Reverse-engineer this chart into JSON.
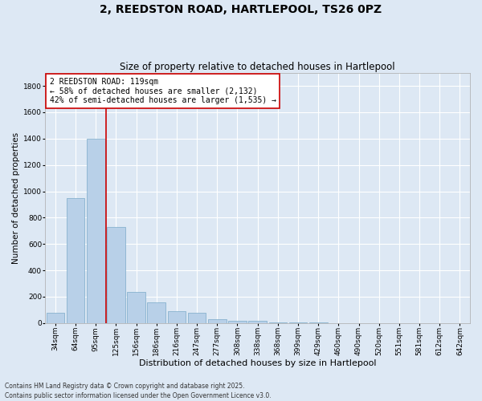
{
  "title": "2, REEDSTON ROAD, HARTLEPOOL, TS26 0PZ",
  "subtitle": "Size of property relative to detached houses in Hartlepool",
  "xlabel": "Distribution of detached houses by size in Hartlepool",
  "ylabel": "Number of detached properties",
  "categories": [
    "34sqm",
    "64sqm",
    "95sqm",
    "125sqm",
    "156sqm",
    "186sqm",
    "216sqm",
    "247sqm",
    "277sqm",
    "308sqm",
    "338sqm",
    "368sqm",
    "399sqm",
    "429sqm",
    "460sqm",
    "490sqm",
    "520sqm",
    "551sqm",
    "581sqm",
    "612sqm",
    "642sqm"
  ],
  "values": [
    75,
    950,
    1400,
    730,
    235,
    155,
    90,
    80,
    30,
    20,
    15,
    5,
    3,
    2,
    1,
    1,
    0,
    0,
    0,
    0,
    0
  ],
  "bar_color": "#b8d0e8",
  "bar_edge_color": "#7aaac8",
  "vline_color": "#cc0000",
  "annotation_text": "2 REEDSTON ROAD: 119sqm\n← 58% of detached houses are smaller (2,132)\n42% of semi-detached houses are larger (1,535) →",
  "annotation_box_facecolor": "#ffffff",
  "annotation_box_edge": "#cc0000",
  "ylim": [
    0,
    1900
  ],
  "yticks": [
    0,
    200,
    400,
    600,
    800,
    1000,
    1200,
    1400,
    1600,
    1800
  ],
  "bg_color": "#dde8f4",
  "grid_color": "#ffffff",
  "footer": "Contains HM Land Registry data © Crown copyright and database right 2025.\nContains public sector information licensed under the Open Government Licence v3.0.",
  "title_fontsize": 10,
  "subtitle_fontsize": 8.5,
  "xlabel_fontsize": 8,
  "ylabel_fontsize": 7.5,
  "tick_fontsize": 6.5,
  "annotation_fontsize": 7,
  "footer_fontsize": 5.5
}
